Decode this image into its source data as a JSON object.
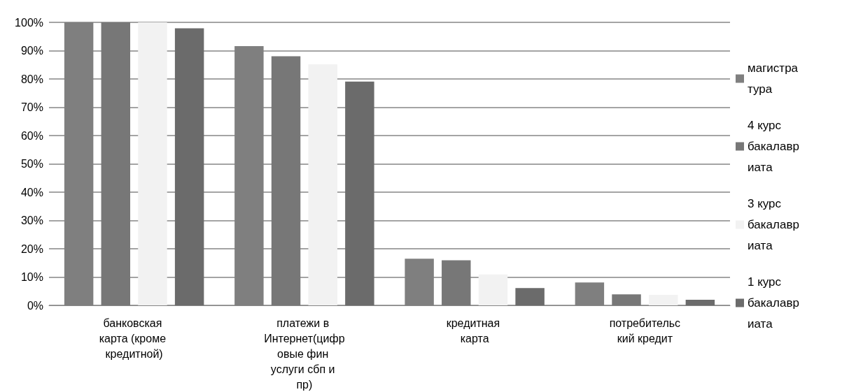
{
  "chart_data": {
    "type": "bar",
    "categories": [
      "банковская карта (кроме кредитной)",
      "платежи в Интернет(цифровые фин услуги сбп и пр)",
      "кредитная карта",
      "потребительский кредит"
    ],
    "series": [
      {
        "name": "магистратура",
        "color": "#7f7f7f",
        "values": [
          100,
          91.6,
          16.5,
          8.1
        ]
      },
      {
        "name": "4 курс бакалавриата",
        "color": "#777777",
        "values": [
          100,
          88.0,
          15.9,
          3.9
        ]
      },
      {
        "name": "3 курс бакалавриата",
        "color": "#f2f2f2",
        "values": [
          100,
          85.2,
          10.9,
          3.7
        ]
      },
      {
        "name": "1 курс бакалавриата",
        "color": "#6b6b6b",
        "values": [
          97.9,
          79.1,
          6.1,
          2.0
        ]
      }
    ],
    "ylim": [
      0,
      100
    ],
    "yticks": [
      {
        "value": 0,
        "label": "0%"
      },
      {
        "value": 10,
        "label": "10%"
      },
      {
        "value": 20,
        "label": "20%"
      },
      {
        "value": 30,
        "label": "30%"
      },
      {
        "value": 40,
        "label": "40%"
      },
      {
        "value": 50,
        "label": "50%"
      },
      {
        "value": 60,
        "label": "60%"
      },
      {
        "value": 70,
        "label": "70%"
      },
      {
        "value": 80,
        "label": "80%"
      },
      {
        "value": 90,
        "label": "90%"
      },
      {
        "value": 100,
        "label": "100%"
      }
    ],
    "grid": "y",
    "legend": "right"
  }
}
